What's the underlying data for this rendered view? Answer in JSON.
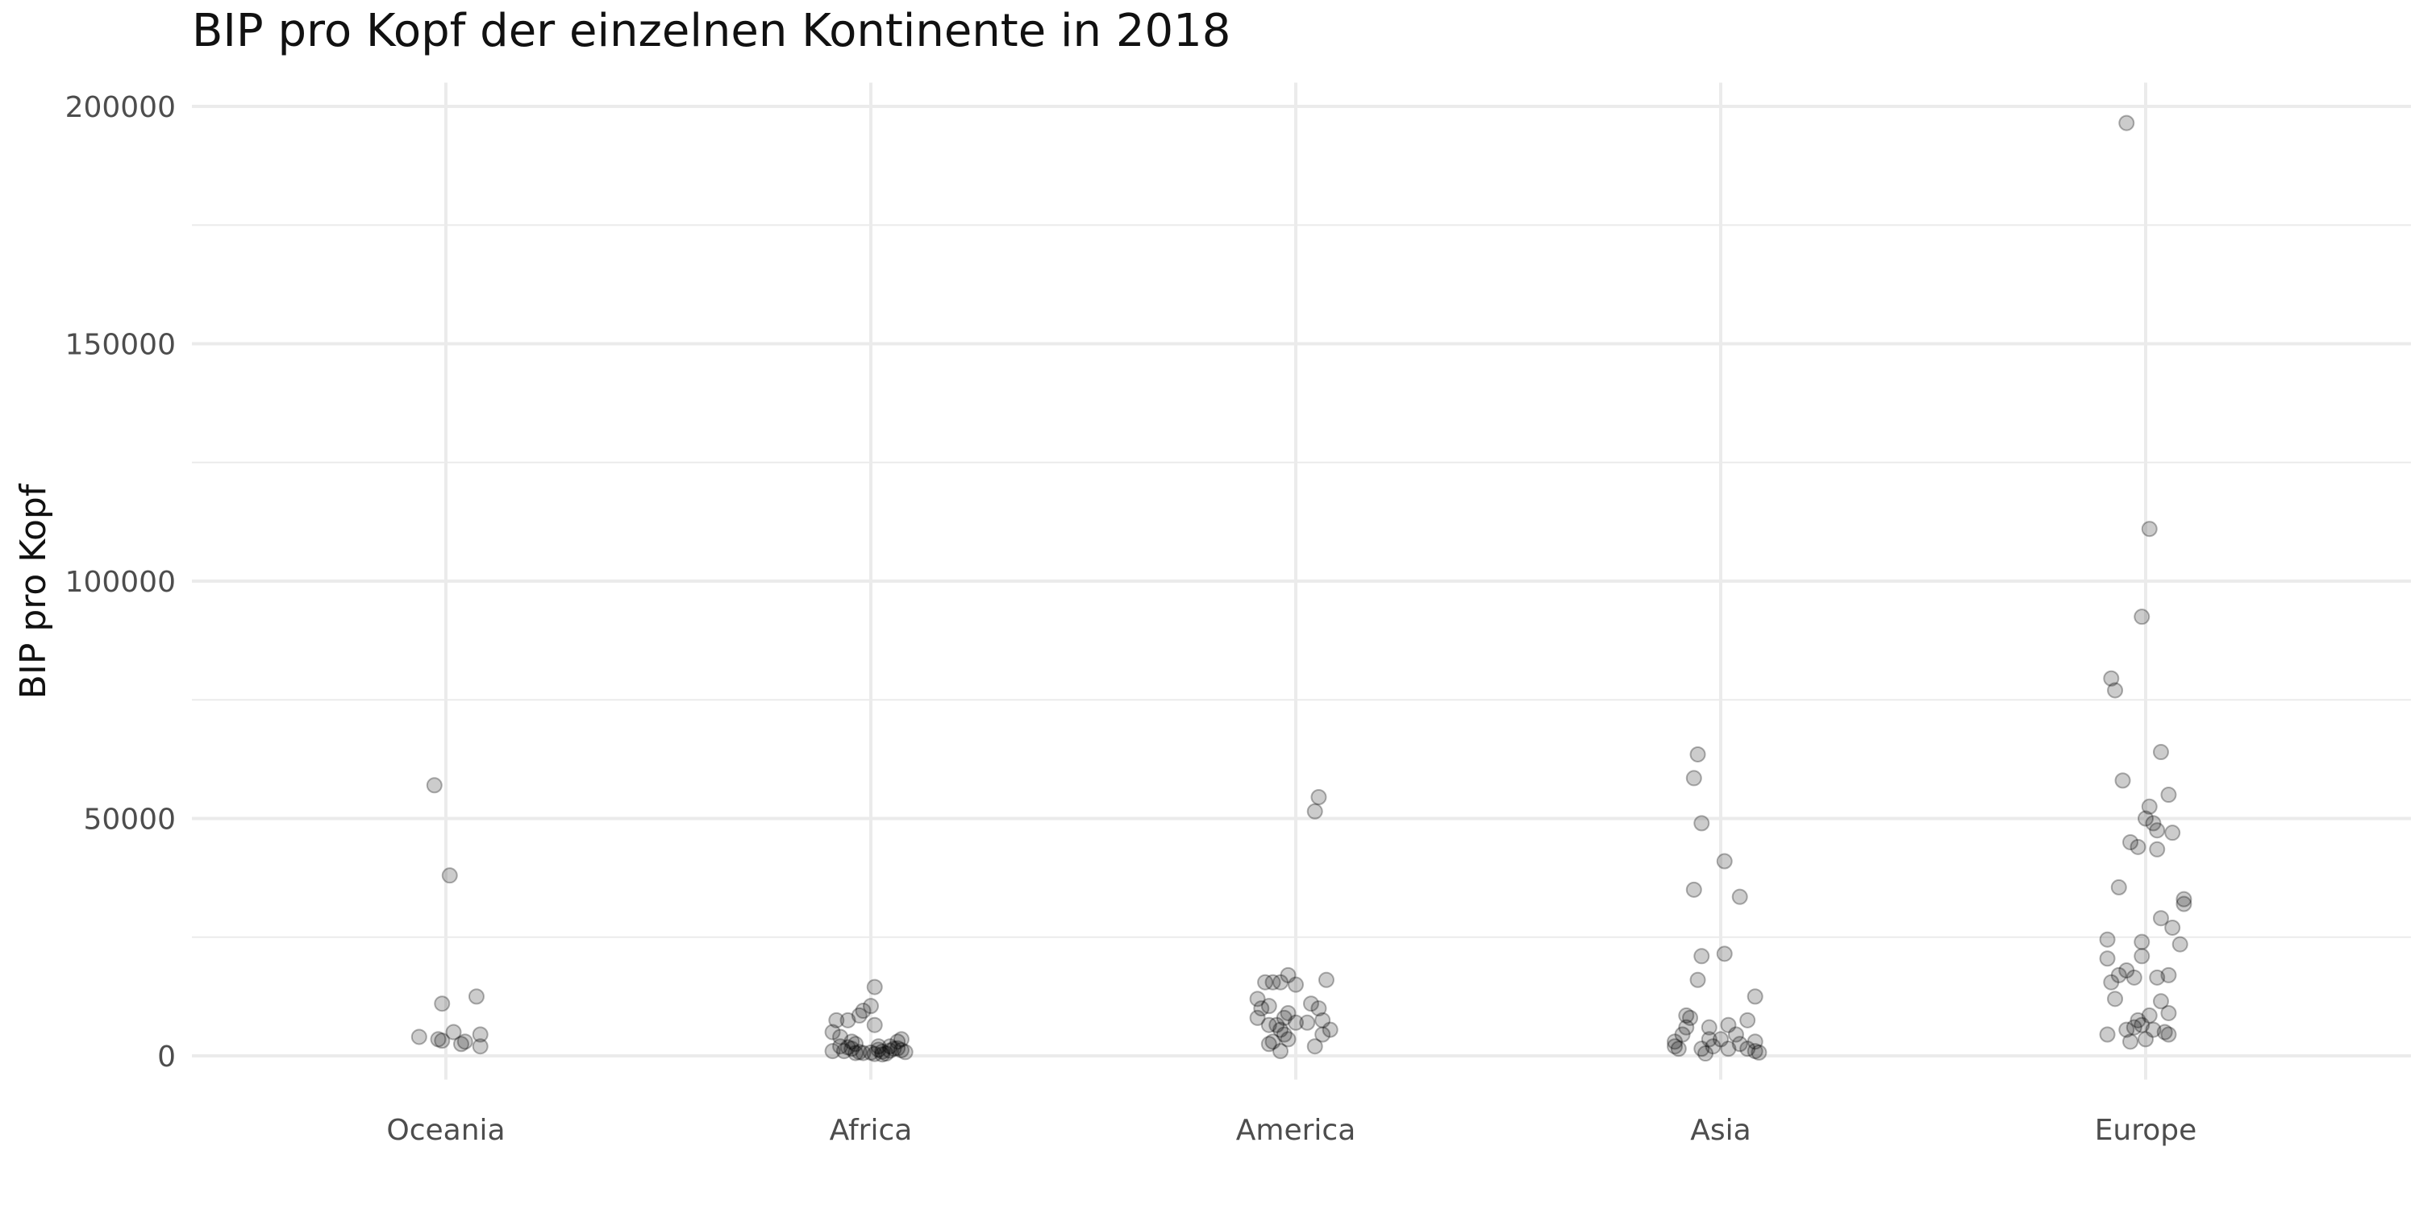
{
  "chart_data": {
    "type": "scatter",
    "title": "BIP pro Kopf der einzelnen Kontinente in 2018",
    "xlabel": "",
    "ylabel": "BIP pro Kopf",
    "categories": [
      "Oceania",
      "Africa",
      "America",
      "Asia",
      "Europe"
    ],
    "ylim": [
      -5000,
      205000
    ],
    "yticks": [
      0,
      50000,
      100000,
      150000,
      200000
    ],
    "ytick_labels": [
      "0",
      "50000",
      "100000",
      "150000",
      "200000"
    ],
    "grid": true,
    "marker_color": "#000000",
    "series": [
      {
        "name": "Oceania",
        "points": [
          [
            -0.03,
            57000
          ],
          [
            0.01,
            38000
          ],
          [
            -0.01,
            11000
          ],
          [
            0.08,
            12500
          ],
          [
            -0.07,
            4000
          ],
          [
            0.02,
            5000
          ],
          [
            -0.02,
            3500
          ],
          [
            0.05,
            3000
          ],
          [
            0.09,
            4500
          ],
          [
            0.09,
            2000
          ],
          [
            0.04,
            2500
          ],
          [
            -0.01,
            3200
          ]
        ]
      },
      {
        "name": "Africa",
        "points": [
          [
            0.01,
            14500
          ],
          [
            0.0,
            10500
          ],
          [
            -0.02,
            9500
          ],
          [
            -0.03,
            8500
          ],
          [
            -0.06,
            7500
          ],
          [
            -0.09,
            7500
          ],
          [
            0.01,
            6500
          ],
          [
            -0.1,
            5000
          ],
          [
            -0.08,
            4000
          ],
          [
            -0.05,
            3000
          ],
          [
            0.08,
            3500
          ],
          [
            0.07,
            3000
          ],
          [
            -0.04,
            2500
          ],
          [
            0.02,
            2000
          ],
          [
            0.05,
            2000
          ],
          [
            0.06,
            1500
          ],
          [
            -0.1,
            1000
          ],
          [
            -0.07,
            1000
          ],
          [
            -0.03,
            800
          ],
          [
            0.0,
            700
          ],
          [
            0.03,
            900
          ],
          [
            0.08,
            1200
          ],
          [
            -0.05,
            1500
          ],
          [
            0.04,
            500
          ],
          [
            -0.02,
            600
          ],
          [
            0.02,
            1300
          ],
          [
            0.09,
            800
          ],
          [
            -0.06,
            1800
          ],
          [
            0.05,
            1100
          ],
          [
            -0.04,
            600
          ],
          [
            0.01,
            400
          ],
          [
            -0.08,
            2000
          ],
          [
            0.07,
            1600
          ],
          [
            0.03,
            300
          ]
        ]
      },
      {
        "name": "America",
        "points": [
          [
            0.06,
            54500
          ],
          [
            0.05,
            51500
          ],
          [
            -0.02,
            17000
          ],
          [
            -0.06,
            15500
          ],
          [
            -0.04,
            15500
          ],
          [
            0.0,
            15000
          ],
          [
            -0.08,
            15500
          ],
          [
            0.08,
            16000
          ],
          [
            -0.1,
            12000
          ],
          [
            -0.07,
            10500
          ],
          [
            -0.09,
            10000
          ],
          [
            -0.1,
            8000
          ],
          [
            0.04,
            11000
          ],
          [
            0.06,
            10000
          ],
          [
            -0.02,
            9000
          ],
          [
            -0.03,
            8000
          ],
          [
            0.07,
            7500
          ],
          [
            -0.05,
            6500
          ],
          [
            -0.04,
            5500
          ],
          [
            0.03,
            7000
          ],
          [
            0.09,
            5500
          ],
          [
            0.07,
            4500
          ],
          [
            -0.03,
            4500
          ],
          [
            -0.06,
            3000
          ],
          [
            -0.07,
            2500
          ],
          [
            0.05,
            2000
          ],
          [
            -0.04,
            1000
          ],
          [
            -0.02,
            3500
          ],
          [
            0.0,
            7000
          ],
          [
            -0.07,
            6500
          ]
        ]
      },
      {
        "name": "Asia",
        "points": [
          [
            -0.06,
            63500
          ],
          [
            -0.07,
            58500
          ],
          [
            -0.05,
            49000
          ],
          [
            0.01,
            41000
          ],
          [
            0.05,
            33500
          ],
          [
            -0.07,
            35000
          ],
          [
            0.01,
            21500
          ],
          [
            -0.05,
            21000
          ],
          [
            -0.06,
            16000
          ],
          [
            0.09,
            12500
          ],
          [
            -0.09,
            8500
          ],
          [
            -0.08,
            8000
          ],
          [
            0.02,
            6500
          ],
          [
            0.07,
            7500
          ],
          [
            -0.03,
            6000
          ],
          [
            -0.09,
            6000
          ],
          [
            -0.03,
            3500
          ],
          [
            -0.1,
            4500
          ],
          [
            0.04,
            4500
          ],
          [
            -0.12,
            3000
          ],
          [
            -0.02,
            2000
          ],
          [
            0.0,
            3500
          ],
          [
            0.05,
            2500
          ],
          [
            0.09,
            3000
          ],
          [
            -0.05,
            1500
          ],
          [
            -0.12,
            2000
          ],
          [
            -0.11,
            1500
          ],
          [
            0.09,
            1000
          ],
          [
            0.07,
            1500
          ],
          [
            -0.04,
            500
          ],
          [
            0.1,
            700
          ],
          [
            0.02,
            1500
          ]
        ]
      },
      {
        "name": "Europe",
        "points": [
          [
            -0.05,
            196500
          ],
          [
            0.01,
            111000
          ],
          [
            -0.01,
            92500
          ],
          [
            -0.09,
            79500
          ],
          [
            -0.08,
            77000
          ],
          [
            0.04,
            64000
          ],
          [
            -0.06,
            58000
          ],
          [
            0.06,
            55000
          ],
          [
            0.01,
            52500
          ],
          [
            -0.04,
            45000
          ],
          [
            0.0,
            50000
          ],
          [
            0.02,
            49000
          ],
          [
            0.03,
            47500
          ],
          [
            0.07,
            47000
          ],
          [
            -0.02,
            44000
          ],
          [
            0.03,
            43500
          ],
          [
            -0.07,
            35500
          ],
          [
            0.1,
            33000
          ],
          [
            0.1,
            32000
          ],
          [
            0.04,
            29000
          ],
          [
            0.07,
            27000
          ],
          [
            -0.1,
            24500
          ],
          [
            -0.01,
            24000
          ],
          [
            0.09,
            23500
          ],
          [
            -0.1,
            20500
          ],
          [
            -0.01,
            21000
          ],
          [
            -0.09,
            15500
          ],
          [
            0.03,
            16500
          ],
          [
            0.06,
            17000
          ],
          [
            -0.07,
            17000
          ],
          [
            -0.05,
            18000
          ],
          [
            -0.03,
            16500
          ],
          [
            -0.08,
            12000
          ],
          [
            0.04,
            11500
          ],
          [
            0.06,
            9000
          ],
          [
            0.01,
            8500
          ],
          [
            -0.02,
            7500
          ],
          [
            -0.01,
            6500
          ],
          [
            -0.03,
            6000
          ],
          [
            -0.05,
            5500
          ],
          [
            0.02,
            5500
          ],
          [
            0.05,
            5000
          ],
          [
            -0.1,
            4500
          ],
          [
            -0.04,
            3000
          ],
          [
            0.0,
            3500
          ],
          [
            0.06,
            4500
          ]
        ]
      }
    ]
  }
}
